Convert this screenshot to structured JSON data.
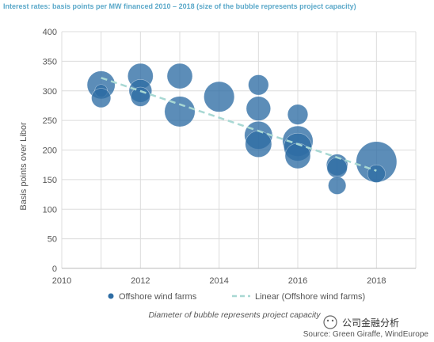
{
  "chart_data": {
    "type": "scatter",
    "title": "Interest rates: basis points per MW financed 2010 – 2018 (size of the bubble represents project capacity)",
    "xlabel": "",
    "ylabel": "Basis points over Libor",
    "xlim": [
      2010,
      2019
    ],
    "ylim": [
      0,
      400
    ],
    "x_ticks": [
      "2010",
      "2012",
      "2014",
      "2016",
      "2018"
    ],
    "y_ticks": [
      "0",
      "50",
      "100",
      "150",
      "200",
      "250",
      "300",
      "350",
      "400"
    ],
    "grid": true,
    "series": [
      {
        "name": "Offshore wind farms",
        "color": "#2e6da4",
        "points": [
          {
            "x": 2011,
            "y": 310,
            "size": 0.55
          },
          {
            "x": 2011,
            "y": 300,
            "size": 0.25
          },
          {
            "x": 2011,
            "y": 288,
            "size": 0.38
          },
          {
            "x": 2012,
            "y": 325,
            "size": 0.5
          },
          {
            "x": 2012,
            "y": 300,
            "size": 0.45
          },
          {
            "x": 2012,
            "y": 290,
            "size": 0.38
          },
          {
            "x": 2013,
            "y": 325,
            "size": 0.5
          },
          {
            "x": 2013,
            "y": 265,
            "size": 0.6
          },
          {
            "x": 2014,
            "y": 290,
            "size": 0.6
          },
          {
            "x": 2015,
            "y": 310,
            "size": 0.4
          },
          {
            "x": 2015,
            "y": 270,
            "size": 0.48
          },
          {
            "x": 2015,
            "y": 225,
            "size": 0.55
          },
          {
            "x": 2015,
            "y": 210,
            "size": 0.52
          },
          {
            "x": 2016,
            "y": 260,
            "size": 0.4
          },
          {
            "x": 2016,
            "y": 215,
            "size": 0.6
          },
          {
            "x": 2016,
            "y": 205,
            "size": 0.55
          },
          {
            "x": 2016,
            "y": 190,
            "size": 0.5
          },
          {
            "x": 2017,
            "y": 175,
            "size": 0.42
          },
          {
            "x": 2017,
            "y": 170,
            "size": 0.4
          },
          {
            "x": 2017,
            "y": 140,
            "size": 0.35
          },
          {
            "x": 2018,
            "y": 180,
            "size": 0.8
          },
          {
            "x": 2018,
            "y": 160,
            "size": 0.35
          }
        ]
      },
      {
        "name": "Linear (Offshore wind farms)",
        "type": "line",
        "style": "dashed",
        "color": "#a8d8d3",
        "points": [
          {
            "x": 2011,
            "y": 322
          },
          {
            "x": 2018,
            "y": 165
          }
        ]
      }
    ],
    "legend_position": "bottom",
    "note": "Diameter of bubble represents project capacity",
    "source": "Source: Green Giraffe, WindEurope"
  },
  "watermark": "公司金融分析"
}
